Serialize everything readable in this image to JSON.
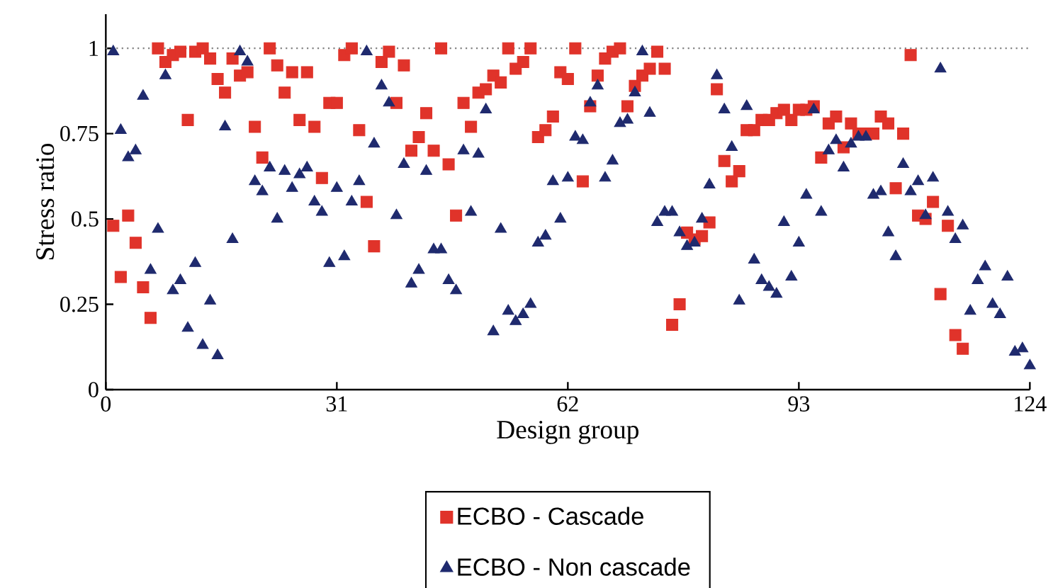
{
  "chart_data": {
    "type": "scatter",
    "xlabel": "Design group",
    "ylabel": "Stress ratio",
    "xlim": [
      0,
      124
    ],
    "ylim": [
      0,
      1.1
    ],
    "xticks": [
      0,
      31,
      62,
      93,
      124
    ],
    "yticks": [
      0,
      0.25,
      0.5,
      0.75,
      1
    ],
    "legend": "bottom",
    "ref_lines": [
      {
        "axis": "y",
        "value": 1,
        "color": "#808080",
        "line_style": "dotted"
      }
    ],
    "series": [
      {
        "name": "ECBO - Cascade",
        "color": "#e0332a",
        "marker": "square",
        "x": [
          1,
          2,
          3,
          4,
          5,
          6,
          7,
          8,
          9,
          10,
          11,
          12,
          13,
          14,
          15,
          16,
          17,
          18,
          19,
          20,
          21,
          22,
          23,
          24,
          25,
          26,
          27,
          28,
          29,
          30,
          31,
          32,
          33,
          34,
          35,
          36,
          37,
          38,
          39,
          40,
          41,
          42,
          43,
          44,
          45,
          46,
          47,
          48,
          49,
          50,
          51,
          52,
          53,
          54,
          55,
          56,
          57,
          58,
          59,
          60,
          61,
          62,
          63,
          64,
          65,
          66,
          67,
          68,
          69,
          70,
          71,
          72,
          73,
          74,
          75,
          76,
          77,
          78,
          79,
          80,
          81,
          82,
          83,
          84,
          85,
          86,
          87,
          88,
          89,
          90,
          91,
          92,
          93,
          94,
          95,
          96,
          97,
          98,
          99,
          100,
          101,
          102,
          103,
          104,
          105,
          106,
          107,
          108,
          109,
          110,
          111,
          112,
          113,
          114,
          115
        ],
        "values": [
          0.48,
          0.33,
          0.51,
          0.43,
          0.3,
          0.21,
          1.0,
          0.96,
          0.98,
          0.99,
          0.79,
          0.99,
          1.0,
          0.97,
          0.91,
          0.87,
          0.97,
          0.92,
          0.93,
          0.77,
          0.68,
          1.0,
          0.95,
          0.87,
          0.93,
          0.79,
          0.93,
          0.77,
          0.62,
          0.84,
          0.84,
          0.98,
          1.0,
          0.76,
          0.55,
          0.42,
          0.96,
          0.99,
          0.84,
          0.95,
          0.7,
          0.74,
          0.81,
          0.7,
          1.0,
          0.66,
          0.51,
          0.84,
          0.77,
          0.87,
          0.88,
          0.92,
          0.9,
          1.0,
          0.94,
          0.96,
          1.0,
          0.74,
          0.76,
          0.8,
          0.93,
          0.91,
          1.0,
          0.61,
          0.83,
          0.92,
          0.97,
          0.99,
          1.0,
          0.83,
          0.89,
          0.92,
          0.94,
          0.99,
          0.94,
          0.19,
          0.25,
          0.46,
          0.44,
          0.45,
          0.49,
          0.88,
          0.67,
          0.61,
          0.64,
          0.76,
          0.76,
          0.79,
          0.79,
          0.81,
          0.82,
          0.79,
          0.82,
          0.82,
          0.83,
          0.68,
          0.78,
          0.8,
          0.71,
          0.78,
          0.75,
          0.75,
          0.75,
          0.8,
          0.78,
          0.59,
          0.75,
          0.98,
          0.51,
          0.5,
          0.55,
          0.28,
          0.48,
          0.16,
          0.12
        ]
      },
      {
        "name": "ECBO - Non cascade",
        "color": "#1f2a6e",
        "marker": "triangle",
        "x": [
          1,
          2,
          3,
          4,
          5,
          6,
          7,
          8,
          9,
          10,
          11,
          12,
          13,
          14,
          15,
          16,
          17,
          18,
          19,
          20,
          21,
          22,
          23,
          24,
          25,
          26,
          27,
          28,
          29,
          30,
          31,
          32,
          33,
          34,
          35,
          36,
          37,
          38,
          39,
          40,
          41,
          42,
          43,
          44,
          45,
          46,
          47,
          48,
          49,
          50,
          51,
          52,
          53,
          54,
          55,
          56,
          57,
          58,
          59,
          60,
          61,
          62,
          63,
          64,
          65,
          66,
          67,
          68,
          69,
          70,
          71,
          72,
          73,
          74,
          75,
          76,
          77,
          78,
          79,
          80,
          81,
          82,
          83,
          84,
          85,
          86,
          87,
          88,
          89,
          90,
          91,
          92,
          93,
          94,
          95,
          96,
          97,
          98,
          99,
          100,
          101,
          102,
          103,
          104,
          105,
          106,
          107,
          108,
          109,
          110,
          111,
          112,
          113,
          114,
          115,
          116,
          117,
          118,
          119,
          120,
          121,
          122,
          123,
          124
        ],
        "values": [
          0.99,
          0.76,
          0.68,
          0.7,
          0.86,
          0.35,
          0.47,
          0.92,
          0.29,
          0.32,
          0.18,
          0.37,
          0.13,
          0.26,
          0.1,
          0.77,
          0.44,
          0.99,
          0.96,
          0.61,
          0.58,
          0.65,
          0.5,
          0.64,
          0.59,
          0.63,
          0.65,
          0.55,
          0.52,
          0.37,
          0.59,
          0.39,
          0.55,
          0.61,
          0.99,
          0.72,
          0.89,
          0.84,
          0.51,
          0.66,
          0.31,
          0.35,
          0.64,
          0.41,
          0.41,
          0.32,
          0.29,
          0.7,
          0.52,
          0.69,
          0.82,
          0.17,
          0.47,
          0.23,
          0.2,
          0.22,
          0.25,
          0.43,
          0.45,
          0.61,
          0.5,
          0.62,
          0.74,
          0.73,
          0.84,
          0.89,
          0.62,
          0.67,
          0.78,
          0.79,
          0.87,
          0.99,
          0.81,
          0.49,
          0.52,
          0.52,
          0.46,
          0.42,
          0.43,
          0.5,
          0.6,
          0.92,
          0.82,
          0.71,
          0.26,
          0.83,
          0.38,
          0.32,
          0.3,
          0.28,
          0.49,
          0.33,
          0.43,
          0.57,
          0.82,
          0.52,
          0.7,
          0.73,
          0.65,
          0.72,
          0.74,
          0.74,
          0.57,
          0.58,
          0.46,
          0.39,
          0.66,
          0.58,
          0.61,
          0.51,
          0.62,
          0.94,
          0.52,
          0.44,
          0.48,
          0.23,
          0.32,
          0.36,
          0.25,
          0.22,
          0.33,
          0.11,
          0.12,
          0.07
        ]
      }
    ]
  }
}
